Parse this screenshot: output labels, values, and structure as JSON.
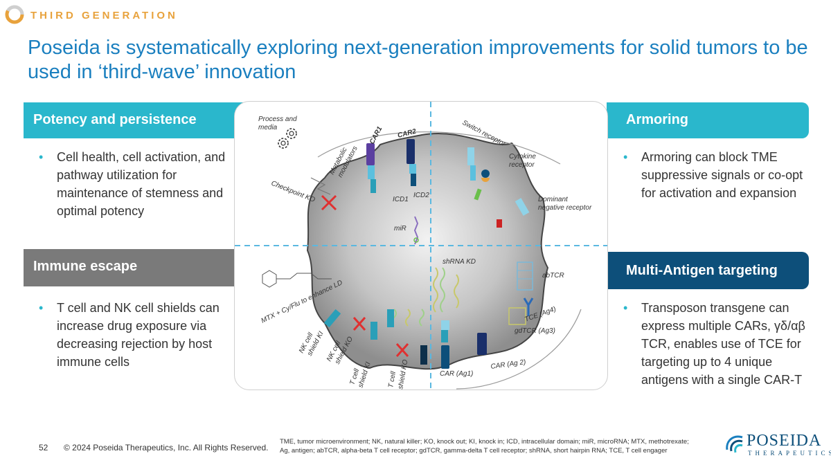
{
  "header": {
    "eyebrow": "THIRD GENERATION",
    "title": "Poseida is systematically exploring next-generation improvements for solid tumors to be used in ‘third-wave’ innovation"
  },
  "quadrants": {
    "potency": {
      "heading": "Potency and persistence",
      "bullet": "Cell health, cell activation, and pathway utilization for maintenance of stemness and optimal potency"
    },
    "armoring": {
      "heading": "Armoring",
      "bullet": "Armoring can block TME suppressive signals or co-opt for activation and expansion"
    },
    "escape": {
      "heading": "Immune escape",
      "bullet": "T cell and NK cell shields can increase drug exposure via decreasing rejection by host immune cells"
    },
    "targeting": {
      "heading": "Multi-Antigen targeting",
      "bullet": "Transposon transgene can express multiple CARs, γδ/αβ TCR, enables use of TCE for targeting up to 4 unique antigens with a single CAR-T"
    }
  },
  "diagram": {
    "process": "Process and",
    "process2": "media",
    "metabolic": "Metabolic",
    "metabolic2": "modulators",
    "car1": "CAR1",
    "car2": "CAR2",
    "switch": "Switch receptor",
    "cytokine": "Cytokine",
    "cytokine2": "receptor",
    "checkpoint": "Checkpoint KO",
    "icd2": "ICD2",
    "icd1": "ICD1",
    "dominant": "Dominant",
    "dominant2": "negative receptor",
    "mir": "miR",
    "shrna": "shRNA KD",
    "abtcr": "abTCR",
    "mtx": "MTX + Cy/Flu to enhance LD",
    "tce": "TCE (Ag4)",
    "gdtcr": "gdTCR (Ag3)",
    "nk_ki": "NK cell",
    "nk_ki2": "shield KI",
    "nk_ko": "NK cell",
    "nk_ko2": "shield KO",
    "car_ag2": "CAR (Ag 2)",
    "car_ag1": "CAR (Ag1)",
    "t_ki": "T cell",
    "t_ki2": "shield KI",
    "t_ko": "T cell",
    "t_ko2": "shield KO"
  },
  "footer": {
    "page": "52",
    "copyright": "© 2024 Poseida Therapeutics, Inc. All Rights Reserved.",
    "abbrev1": "TME, tumor microenvironment; NK, natural killer; KO, knock out; KI, knock in; ICD, intracellular domain; miR, microRNA; MTX, methotrexate;",
    "abbrev2": "Ag, antigen; abTCR, alpha-beta T cell receptor; gdTCR, gamma-delta T cell receptor; shRNA, short hairpin RNA; TCE, T cell engager",
    "logo_main": "POSEIDA",
    "logo_sub": "THERAPEUTICS"
  },
  "colors": {
    "accent_teal": "#2ab7cc",
    "accent_orange": "#e8a23c",
    "title_blue": "#1a7fbf",
    "navy": "#0d4f7a",
    "gray_band": "#7a7a7a"
  }
}
